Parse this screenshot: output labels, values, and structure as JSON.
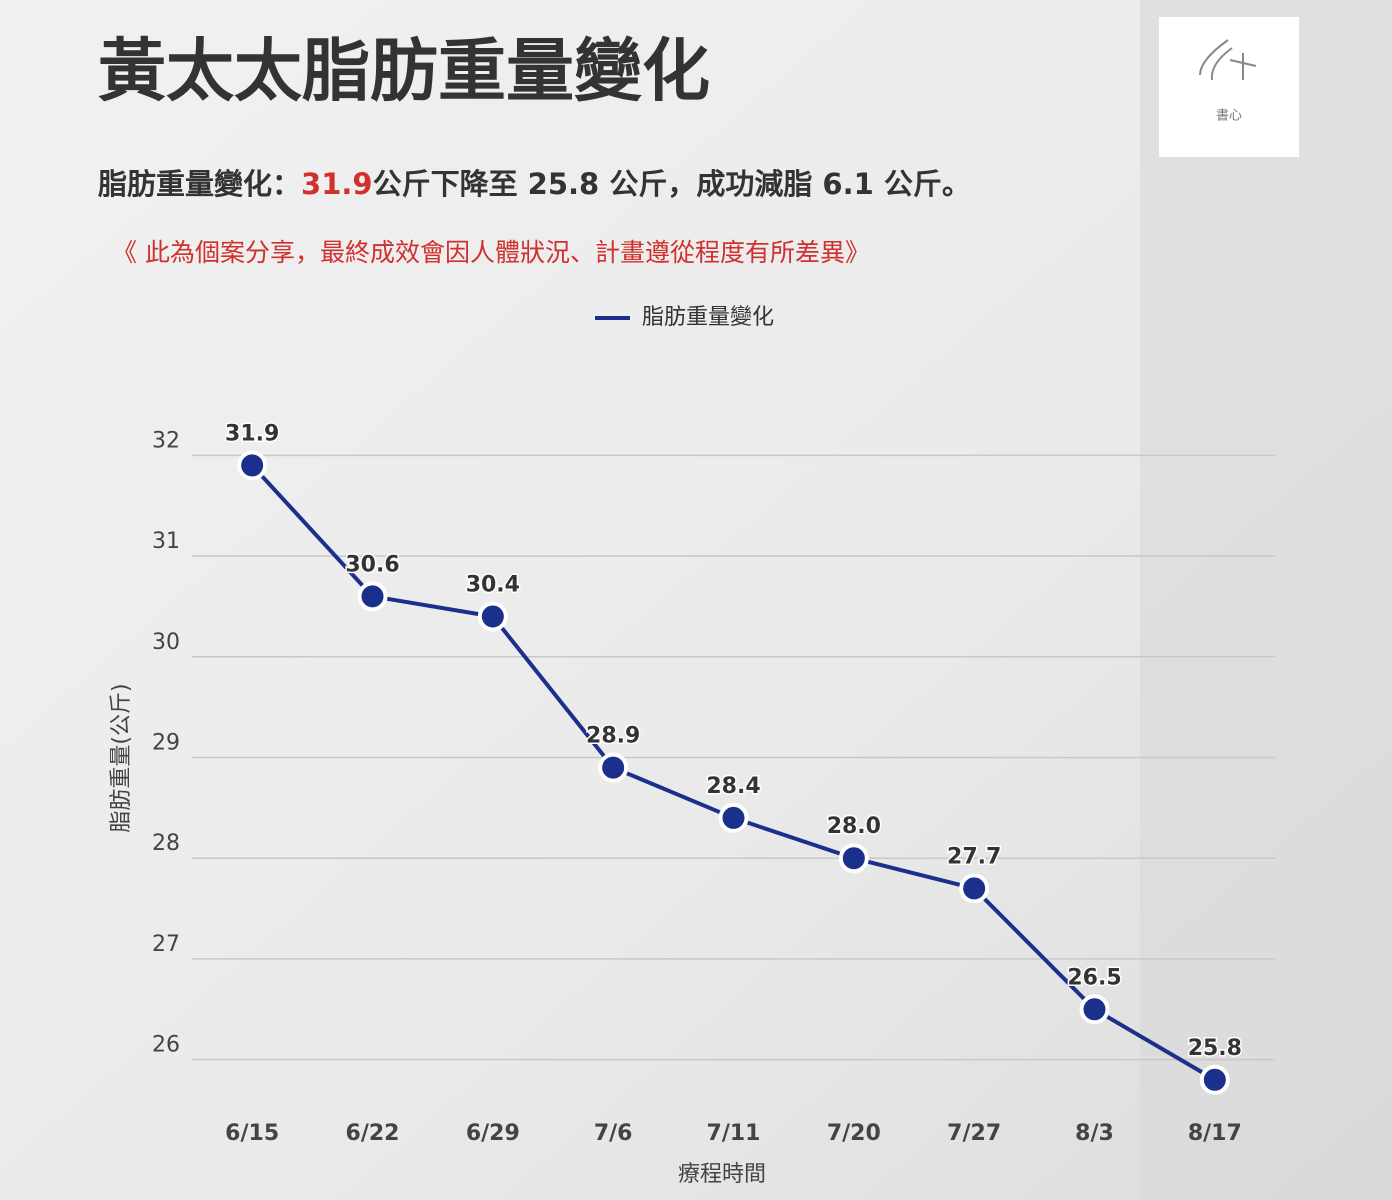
{
  "header": {
    "title": "黃太太脂肪重量變化",
    "summary": {
      "lead": "脂肪重量變化：",
      "highlight": "31.9",
      "rest": "公斤下降至 25.8 公斤，成功減脂 6.1 公斤。"
    },
    "note": "《 此為個案分享，最終成效會因人體狀況、計畫遵從程度有所差異》",
    "logo": "書心"
  },
  "chart_data": {
    "type": "line",
    "categories": [
      "6/15",
      "6/22",
      "6/29",
      "7/6",
      "7/11",
      "7/20",
      "7/27",
      "8/3",
      "8/17"
    ],
    "series": [
      {
        "name": "脂肪重量變化",
        "color": "#1b2f8c",
        "values": [
          31.9,
          30.6,
          30.4,
          28.9,
          28.4,
          28.0,
          27.7,
          26.5,
          25.8
        ],
        "value_labels": [
          "31.9",
          "30.6",
          "30.4",
          "28.9",
          "28.4",
          "28.0",
          "27.7",
          "26.5",
          "25.8"
        ]
      }
    ],
    "ylim": [
      25.5,
      32.5
    ],
    "yticks": [
      26,
      27,
      28,
      29,
      30,
      31,
      32
    ],
    "y_label": "脂肪重量(公斤)",
    "x_label": "療程時間",
    "grid": true,
    "legend": "top"
  }
}
